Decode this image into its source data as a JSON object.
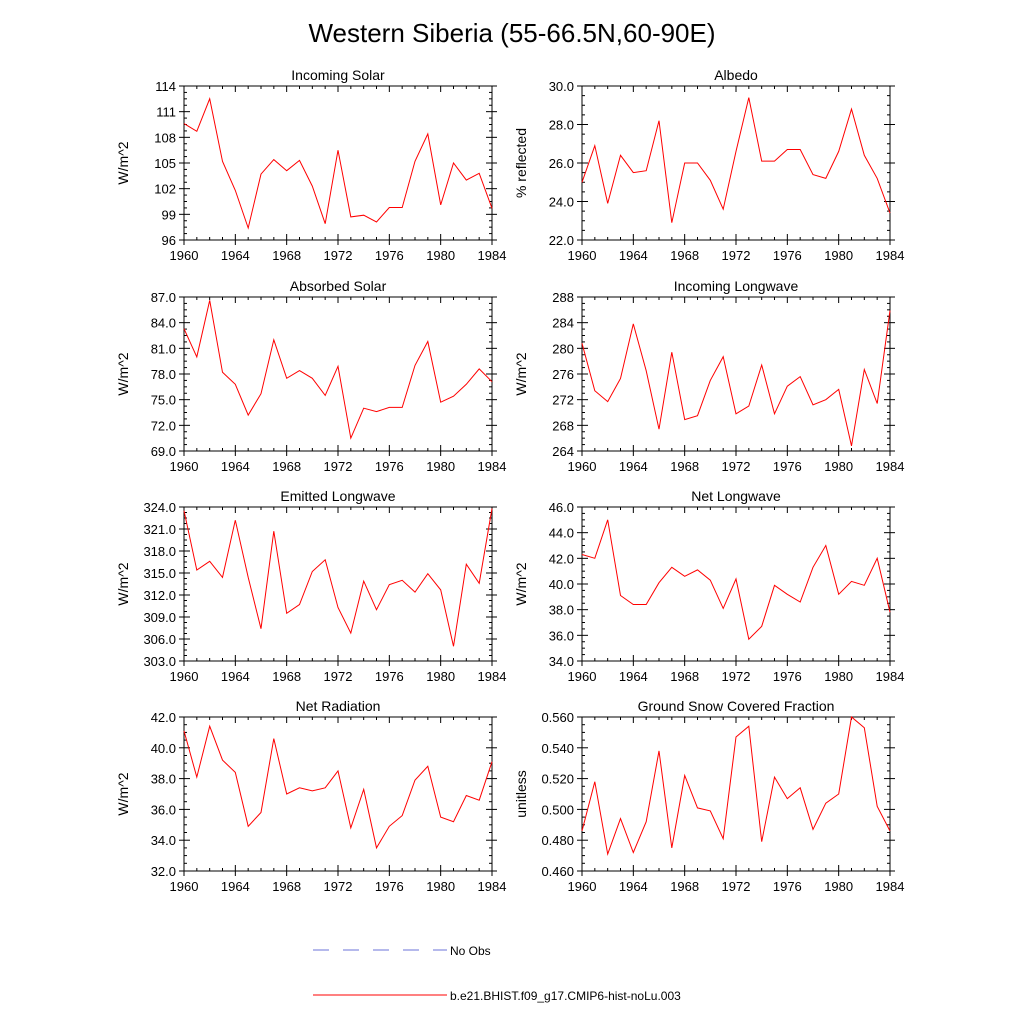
{
  "figure": {
    "title": "Western Siberia (55-66.5N,60-90E)",
    "legend": [
      {
        "label": "No Obs",
        "color": "#6b73d9",
        "dash": true
      },
      {
        "label": "b.e21.BHIST.f09_g17.CMIP6-hist-noLu.003",
        "color": "#ff0000",
        "dash": false
      }
    ]
  },
  "chart_data": [
    {
      "type": "line",
      "title": "Incoming Solar",
      "xlabel": "",
      "ylabel": "W/m^2",
      "xlim": [
        1960,
        1984
      ],
      "ylim": [
        96,
        114
      ],
      "xticks": [
        "1960",
        "1964",
        "1968",
        "1972",
        "1976",
        "1980",
        "1984"
      ],
      "yticks": [
        "96",
        "99",
        "102",
        "105",
        "108",
        "111",
        "114"
      ],
      "grid": false,
      "x": [
        1960,
        1961,
        1962,
        1963,
        1964,
        1965,
        1966,
        1967,
        1968,
        1969,
        1970,
        1971,
        1972,
        1973,
        1974,
        1975,
        1976,
        1977,
        1978,
        1979,
        1980,
        1981,
        1982,
        1983,
        1984
      ],
      "series": [
        {
          "name": "b.e21.BHIST.f09_g17.CMIP6-hist-noLu.003",
          "color": "#ff0000",
          "values": [
            109.6,
            108.7,
            112.5,
            105.2,
            101.8,
            97.4,
            103.7,
            105.4,
            104.1,
            105.3,
            102.3,
            97.9,
            106.5,
            98.7,
            98.9,
            98.1,
            99.8,
            99.8,
            105.2,
            108.4,
            100.1,
            105.0,
            103.0,
            103.8,
            99.7
          ]
        }
      ]
    },
    {
      "type": "line",
      "title": "Albedo",
      "xlabel": "",
      "ylabel": "% reflected",
      "xlim": [
        1960,
        1984
      ],
      "ylim": [
        22.0,
        30.0
      ],
      "xticks": [
        "1960",
        "1964",
        "1968",
        "1972",
        "1976",
        "1980",
        "1984"
      ],
      "yticks": [
        "22.0",
        "24.0",
        "26.0",
        "28.0",
        "30.0"
      ],
      "grid": false,
      "x": [
        1960,
        1961,
        1962,
        1963,
        1964,
        1965,
        1966,
        1967,
        1968,
        1969,
        1970,
        1971,
        1972,
        1973,
        1974,
        1975,
        1976,
        1977,
        1978,
        1979,
        1980,
        1981,
        1982,
        1983,
        1984
      ],
      "series": [
        {
          "name": "b.e21.BHIST.f09_g17.CMIP6-hist-noLu.003",
          "color": "#ff0000",
          "values": [
            25.0,
            26.9,
            23.9,
            26.4,
            25.5,
            25.6,
            28.2,
            22.9,
            26.0,
            26.0,
            25.1,
            23.6,
            26.6,
            29.4,
            26.1,
            26.1,
            26.7,
            26.7,
            25.4,
            25.2,
            26.6,
            28.8,
            26.4,
            25.2,
            23.4
          ]
        }
      ]
    },
    {
      "type": "line",
      "title": "Absorbed Solar",
      "xlabel": "",
      "ylabel": "W/m^2",
      "xlim": [
        1960,
        1984
      ],
      "ylim": [
        69.0,
        87.0
      ],
      "xticks": [
        "1960",
        "1964",
        "1968",
        "1972",
        "1976",
        "1980",
        "1984"
      ],
      "yticks": [
        "69.0",
        "72.0",
        "75.0",
        "78.0",
        "81.0",
        "84.0",
        "87.0"
      ],
      "grid": false,
      "x": [
        1960,
        1961,
        1962,
        1963,
        1964,
        1965,
        1966,
        1967,
        1968,
        1969,
        1970,
        1971,
        1972,
        1973,
        1974,
        1975,
        1976,
        1977,
        1978,
        1979,
        1980,
        1981,
        1982,
        1983,
        1984
      ],
      "series": [
        {
          "name": "b.e21.BHIST.f09_g17.CMIP6-hist-noLu.003",
          "color": "#ff0000",
          "values": [
            83.3,
            80.0,
            86.6,
            78.2,
            76.8,
            73.2,
            75.7,
            82.0,
            77.5,
            78.4,
            77.5,
            75.5,
            78.9,
            70.5,
            74.0,
            73.6,
            74.1,
            74.1,
            79.0,
            81.8,
            74.7,
            75.4,
            76.8,
            78.6,
            77.1
          ]
        }
      ]
    },
    {
      "type": "line",
      "title": "Incoming Longwave",
      "xlabel": "",
      "ylabel": "W/m^2",
      "xlim": [
        1960,
        1984
      ],
      "ylim": [
        264,
        288
      ],
      "xticks": [
        "1960",
        "1964",
        "1968",
        "1972",
        "1976",
        "1980",
        "1984"
      ],
      "yticks": [
        "264",
        "268",
        "272",
        "276",
        "280",
        "284",
        "288"
      ],
      "grid": false,
      "x": [
        1960,
        1961,
        1962,
        1963,
        1964,
        1965,
        1966,
        1967,
        1968,
        1969,
        1970,
        1971,
        1972,
        1973,
        1974,
        1975,
        1976,
        1977,
        1978,
        1979,
        1980,
        1981,
        1982,
        1983,
        1984
      ],
      "series": [
        {
          "name": "b.e21.BHIST.f09_g17.CMIP6-hist-noLu.003",
          "color": "#ff0000",
          "values": [
            280.8,
            273.4,
            271.7,
            275.3,
            283.8,
            276.5,
            267.4,
            279.4,
            268.9,
            269.5,
            275.0,
            278.7,
            269.8,
            271.0,
            277.4,
            269.8,
            274.1,
            275.6,
            271.2,
            272.0,
            273.6,
            264.8,
            276.7,
            271.4,
            285.9
          ]
        }
      ]
    },
    {
      "type": "line",
      "title": "Emitted Longwave",
      "xlabel": "",
      "ylabel": "W/m^2",
      "xlim": [
        1960,
        1984
      ],
      "ylim": [
        303.0,
        324.0
      ],
      "xticks": [
        "1960",
        "1964",
        "1968",
        "1972",
        "1976",
        "1980",
        "1984"
      ],
      "yticks": [
        "303.0",
        "306.0",
        "309.0",
        "312.0",
        "315.0",
        "318.0",
        "321.0",
        "324.0"
      ],
      "grid": false,
      "x": [
        1960,
        1961,
        1962,
        1963,
        1964,
        1965,
        1966,
        1967,
        1968,
        1969,
        1970,
        1971,
        1972,
        1973,
        1974,
        1975,
        1976,
        1977,
        1978,
        1979,
        1980,
        1981,
        1982,
        1983,
        1984
      ],
      "series": [
        {
          "name": "b.e21.BHIST.f09_g17.CMIP6-hist-noLu.003",
          "color": "#ff0000",
          "values": [
            323.5,
            315.4,
            316.6,
            314.4,
            322.2,
            314.4,
            307.4,
            320.7,
            309.5,
            310.7,
            315.2,
            316.8,
            310.3,
            306.8,
            313.9,
            310.0,
            313.4,
            314.0,
            312.4,
            314.9,
            312.7,
            305.0,
            316.2,
            313.6,
            323.8
          ]
        }
      ]
    },
    {
      "type": "line",
      "title": "Net Longwave",
      "xlabel": "",
      "ylabel": "W/m^2",
      "xlim": [
        1960,
        1984
      ],
      "ylim": [
        34.0,
        46.0
      ],
      "xticks": [
        "1960",
        "1964",
        "1968",
        "1972",
        "1976",
        "1980",
        "1984"
      ],
      "yticks": [
        "34.0",
        "36.0",
        "38.0",
        "40.0",
        "42.0",
        "44.0",
        "46.0"
      ],
      "grid": false,
      "x": [
        1960,
        1961,
        1962,
        1963,
        1964,
        1965,
        1966,
        1967,
        1968,
        1969,
        1970,
        1971,
        1972,
        1973,
        1974,
        1975,
        1976,
        1977,
        1978,
        1979,
        1980,
        1981,
        1982,
        1983,
        1984
      ],
      "series": [
        {
          "name": "b.e21.BHIST.f09_g17.CMIP6-hist-noLu.003",
          "color": "#ff0000",
          "values": [
            42.3,
            42.0,
            45.0,
            39.1,
            38.4,
            38.4,
            40.1,
            41.3,
            40.6,
            41.1,
            40.3,
            38.1,
            40.4,
            35.7,
            36.7,
            39.9,
            39.2,
            38.6,
            41.3,
            43.0,
            39.2,
            40.2,
            39.9,
            42.0,
            37.8
          ]
        }
      ]
    },
    {
      "type": "line",
      "title": "Net Radiation",
      "xlabel": "",
      "ylabel": "W/m^2",
      "xlim": [
        1960,
        1984
      ],
      "ylim": [
        32.0,
        42.0
      ],
      "xticks": [
        "1960",
        "1964",
        "1968",
        "1972",
        "1976",
        "1980",
        "1984"
      ],
      "yticks": [
        "32.0",
        "34.0",
        "36.0",
        "38.0",
        "40.0",
        "42.0"
      ],
      "grid": false,
      "x": [
        1960,
        1961,
        1962,
        1963,
        1964,
        1965,
        1966,
        1967,
        1968,
        1969,
        1970,
        1971,
        1972,
        1973,
        1974,
        1975,
        1976,
        1977,
        1978,
        1979,
        1980,
        1981,
        1982,
        1983,
        1984
      ],
      "series": [
        {
          "name": "b.e21.BHIST.f09_g17.CMIP6-hist-noLu.003",
          "color": "#ff0000",
          "values": [
            41.1,
            38.1,
            41.4,
            39.2,
            38.4,
            34.9,
            35.8,
            40.6,
            37.0,
            37.4,
            37.2,
            37.4,
            38.5,
            34.8,
            37.3,
            33.5,
            34.9,
            35.6,
            37.9,
            38.8,
            35.5,
            35.2,
            36.9,
            36.6,
            39.1
          ]
        }
      ]
    },
    {
      "type": "line",
      "title": "Ground Snow Covered Fraction",
      "xlabel": "",
      "ylabel": "unitless",
      "xlim": [
        1960,
        1984
      ],
      "ylim": [
        0.46,
        0.56
      ],
      "xticks": [
        "1960",
        "1964",
        "1968",
        "1972",
        "1976",
        "1980",
        "1984"
      ],
      "yticks": [
        "0.460",
        "0.480",
        "0.500",
        "0.520",
        "0.540",
        "0.560"
      ],
      "grid": false,
      "x": [
        1960,
        1961,
        1962,
        1963,
        1964,
        1965,
        1966,
        1967,
        1968,
        1969,
        1970,
        1971,
        1972,
        1973,
        1974,
        1975,
        1976,
        1977,
        1978,
        1979,
        1980,
        1981,
        1982,
        1983,
        1984
      ],
      "series": [
        {
          "name": "b.e21.BHIST.f09_g17.CMIP6-hist-noLu.003",
          "color": "#ff0000",
          "values": [
            0.486,
            0.518,
            0.471,
            0.494,
            0.472,
            0.492,
            0.538,
            0.475,
            0.522,
            0.501,
            0.499,
            0.481,
            0.547,
            0.554,
            0.479,
            0.521,
            0.507,
            0.514,
            0.487,
            0.504,
            0.51,
            0.56,
            0.553,
            0.502,
            0.486
          ]
        }
      ]
    }
  ]
}
